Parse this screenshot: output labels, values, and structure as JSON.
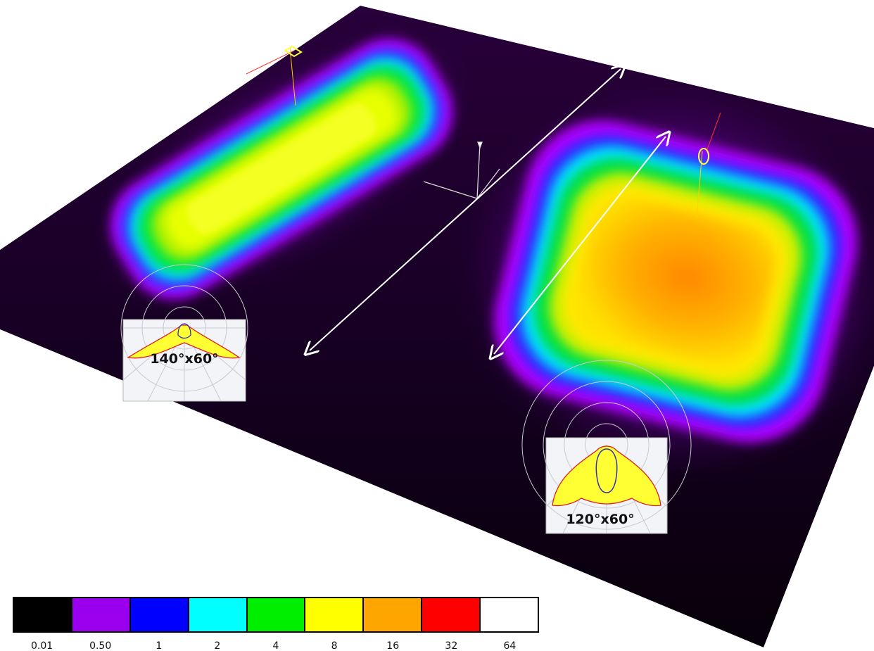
{
  "beam_labels": {
    "left": "140°x60°",
    "right": "120°x60°"
  },
  "legend": {
    "items": [
      {
        "label": "0.01",
        "color": "#000000"
      },
      {
        "label": "0.50",
        "color": "#9a00ee"
      },
      {
        "label": "1",
        "color": "#0000ff"
      },
      {
        "label": "2",
        "color": "#00ffff"
      },
      {
        "label": "4",
        "color": "#00ee00"
      },
      {
        "label": "8",
        "color": "#ffff00"
      },
      {
        "label": "16",
        "color": "#ffa500"
      },
      {
        "label": "32",
        "color": "#ff0000"
      },
      {
        "label": "64",
        "color": "#ffffff"
      }
    ]
  }
}
